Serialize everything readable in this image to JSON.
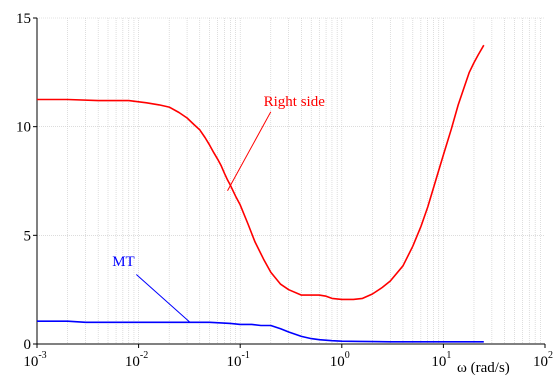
{
  "chart_data": {
    "type": "line",
    "x_scale": "log",
    "xlim": [
      0.001,
      100
    ],
    "ylim": [
      0,
      15
    ],
    "grid": true,
    "legend": "none",
    "xlabel": "ω (rad/s)",
    "ylabel": "",
    "x_ticks": [
      {
        "base": "10",
        "exp": "-3"
      },
      {
        "base": "10",
        "exp": "-2"
      },
      {
        "base": "10",
        "exp": "-1"
      },
      {
        "base": "10",
        "exp": "0"
      },
      {
        "base": "10",
        "exp": "1"
      },
      {
        "base": "10",
        "exp": "2"
      }
    ],
    "y_ticks": [
      "0",
      "5",
      "10",
      "15"
    ],
    "series": [
      {
        "name": "Right side",
        "color": "#ff0000",
        "x": [
          0.001,
          0.002,
          0.004,
          0.008,
          0.012,
          0.016,
          0.02,
          0.025,
          0.03,
          0.035,
          0.04,
          0.045,
          0.05,
          0.055,
          0.06,
          0.065,
          0.07,
          0.075,
          0.08,
          0.09,
          0.1,
          0.12,
          0.14,
          0.17,
          0.2,
          0.25,
          0.3,
          0.4,
          0.5,
          0.6,
          0.7,
          0.8,
          1.0,
          1.3,
          1.6,
          2.0,
          2.5,
          3.0,
          4.0,
          5.0,
          6.0,
          7.0,
          8.0,
          9.0,
          10.0,
          12.0,
          14.0,
          16.0,
          18.0,
          20.0,
          22.0,
          25.0
        ],
        "y": [
          11.25,
          11.25,
          11.2,
          11.2,
          11.1,
          11.0,
          10.9,
          10.65,
          10.4,
          10.1,
          9.85,
          9.5,
          9.15,
          8.8,
          8.5,
          8.2,
          7.85,
          7.55,
          7.3,
          6.8,
          6.4,
          5.5,
          4.7,
          3.9,
          3.3,
          2.75,
          2.5,
          2.25,
          2.25,
          2.25,
          2.2,
          2.1,
          2.05,
          2.05,
          2.1,
          2.3,
          2.6,
          2.9,
          3.6,
          4.5,
          5.4,
          6.3,
          7.2,
          8.0,
          8.7,
          9.9,
          11.0,
          11.8,
          12.5,
          12.95,
          13.3,
          13.75
        ]
      },
      {
        "name": "MT",
        "color": "#0000ff",
        "x": [
          0.001,
          0.002,
          0.003,
          0.005,
          0.01,
          0.03,
          0.05,
          0.08,
          0.1,
          0.13,
          0.16,
          0.2,
          0.25,
          0.3,
          0.4,
          0.5,
          0.6,
          0.8,
          1.0,
          1.5,
          2.0,
          3.0,
          5.0,
          10.0,
          20.0,
          25.0
        ],
        "y": [
          1.05,
          1.05,
          1.0,
          1.0,
          1.0,
          1.0,
          1.0,
          0.95,
          0.9,
          0.9,
          0.85,
          0.85,
          0.7,
          0.55,
          0.35,
          0.25,
          0.2,
          0.15,
          0.13,
          0.12,
          0.11,
          0.1,
          0.1,
          0.1,
          0.1,
          0.1
        ]
      }
    ],
    "annotations": [
      {
        "text": "Right side",
        "color": "#ff0000",
        "series": "Right side"
      },
      {
        "text": "MT",
        "color": "#0000ff",
        "series": "MT"
      }
    ]
  }
}
